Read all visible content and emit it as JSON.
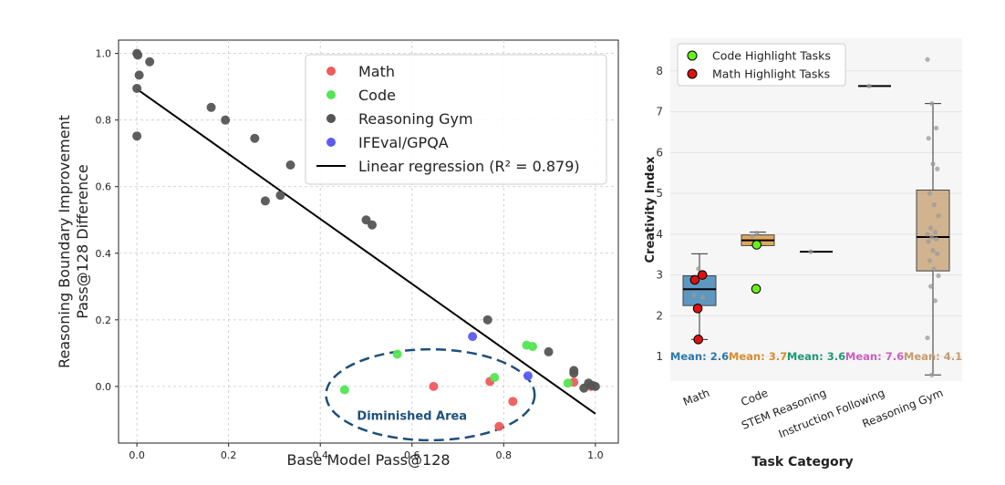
{
  "chart_data": [
    {
      "type": "scatter",
      "xlabel": "Base Model Pass@128",
      "ylabel": [
        "Reasoning Boundary Improvement",
        "Pass@128 Difference"
      ],
      "xlim": [
        -0.04,
        1.05
      ],
      "ylim": [
        -0.17,
        1.04
      ],
      "xticks": [
        "0.0",
        "0.2",
        "0.4",
        "0.6",
        "0.8",
        "1.0"
      ],
      "yticks": [
        "0.0",
        "0.2",
        "0.4",
        "0.6",
        "0.8",
        "1.0"
      ],
      "grid": true,
      "legend_position": "upper-right",
      "annotation": "Diminished Area",
      "series": [
        {
          "name": "Math",
          "color": "#f05b5b",
          "points": [
            [
              0.647,
              0.0
            ],
            [
              0.77,
              0.015
            ],
            [
              0.79,
              -0.12
            ],
            [
              0.82,
              -0.045
            ],
            [
              0.953,
              0.013
            ],
            [
              0.99,
              0.0
            ]
          ]
        },
        {
          "name": "Code",
          "color": "#53e553",
          "points": [
            [
              0.453,
              -0.01
            ],
            [
              0.568,
              0.097
            ],
            [
              0.78,
              0.027
            ],
            [
              0.85,
              0.124
            ],
            [
              0.863,
              0.12
            ],
            [
              0.94,
              0.01
            ]
          ]
        },
        {
          "name": "Reasoning Gym",
          "color": "#555555",
          "points": [
            [
              0.0,
              1.0
            ],
            [
              0.002,
              0.995
            ],
            [
              0.0,
              0.895
            ],
            [
              0.005,
              0.935
            ],
            [
              0.028,
              0.975
            ],
            [
              0.0,
              0.752
            ],
            [
              0.162,
              0.838
            ],
            [
              0.193,
              0.8
            ],
            [
              0.257,
              0.745
            ],
            [
              0.28,
              0.557
            ],
            [
              0.313,
              0.574
            ],
            [
              0.335,
              0.665
            ],
            [
              0.5,
              0.5
            ],
            [
              0.513,
              0.485
            ],
            [
              0.765,
              0.2
            ],
            [
              0.898,
              0.104
            ],
            [
              0.953,
              0.048
            ],
            [
              0.953,
              0.04
            ],
            [
              0.975,
              -0.005
            ],
            [
              0.985,
              0.01
            ],
            [
              0.993,
              0.003
            ],
            [
              1.0,
              0.0
            ]
          ]
        },
        {
          "name": "IFEval/GPQA",
          "color": "#5b5bf0",
          "points": [
            [
              0.732,
              0.15
            ],
            [
              0.853,
              0.032
            ]
          ]
        }
      ],
      "regression": {
        "name": "Linear regression (R² = 0.879)",
        "color": "#000000",
        "from": [
          0.0,
          0.893
        ],
        "to": [
          1.0,
          -0.082
        ]
      }
    },
    {
      "type": "box",
      "xlabel": "Task Category",
      "ylabel": "Creativity Index",
      "ylim": [
        0.4,
        8.8
      ],
      "yticks": [
        "1",
        "2",
        "3",
        "4",
        "5",
        "6",
        "7",
        "8"
      ],
      "grid": true,
      "legend_position": "upper-left",
      "legend": [
        {
          "label": "Code Highlight Tasks",
          "color": "#66f01f"
        },
        {
          "label": "Math Highlight Tasks",
          "color": "#dd1111"
        }
      ],
      "categories": [
        {
          "label": "Math",
          "color": "#2b78ad",
          "q1": 2.25,
          "median": 2.65,
          "q3": 2.98,
          "whisker_low": 1.42,
          "whisker_high": 3.52,
          "mean_label": "Mean: 2.6",
          "points": [
            2.5,
            3.15,
            2.45
          ],
          "highlight_points": [
            [
              -0.08,
              2.88
            ],
            [
              0.05,
              3.0
            ],
            [
              -0.03,
              2.18
            ],
            [
              -0.02,
              1.42
            ]
          ],
          "highlight_type": "math"
        },
        {
          "label": "Code",
          "color": "#d88d2e",
          "q1": 3.72,
          "median": 3.85,
          "q3": 3.98,
          "whisker_low": 3.72,
          "whisker_high": 4.05,
          "mean_label": "Mean: 3.7",
          "points": [
            3.95,
            4.03
          ],
          "highlight_points": [
            [
              -0.02,
              3.74
            ],
            [
              -0.03,
              2.66
            ]
          ],
          "highlight_type": "code"
        },
        {
          "label": "STEM Reasoning",
          "color": "#1e9a77",
          "median": 3.57,
          "mean_label": "Mean: 3.6",
          "points": [
            3.57
          ]
        },
        {
          "label": "Instruction Following",
          "color": "#cc5ec0",
          "median": 7.63,
          "mean_label": "Mean: 7.6",
          "points": [
            7.63
          ]
        },
        {
          "label": "Reasoning Gym",
          "color": "#c49c6e",
          "q1": 3.1,
          "median": 3.93,
          "q3": 5.08,
          "whisker_low": 0.55,
          "whisker_high": 7.2,
          "mean_label": "Mean: 4.1",
          "points": [
            8.28,
            7.2,
            6.6,
            6.35,
            5.72,
            5.6,
            5.0,
            4.72,
            4.45,
            4.15,
            4.05,
            4.0,
            3.93,
            3.88,
            3.82,
            3.6,
            3.52,
            3.35,
            3.15,
            2.98,
            2.72,
            2.37,
            1.46,
            0.55
          ]
        }
      ]
    }
  ]
}
